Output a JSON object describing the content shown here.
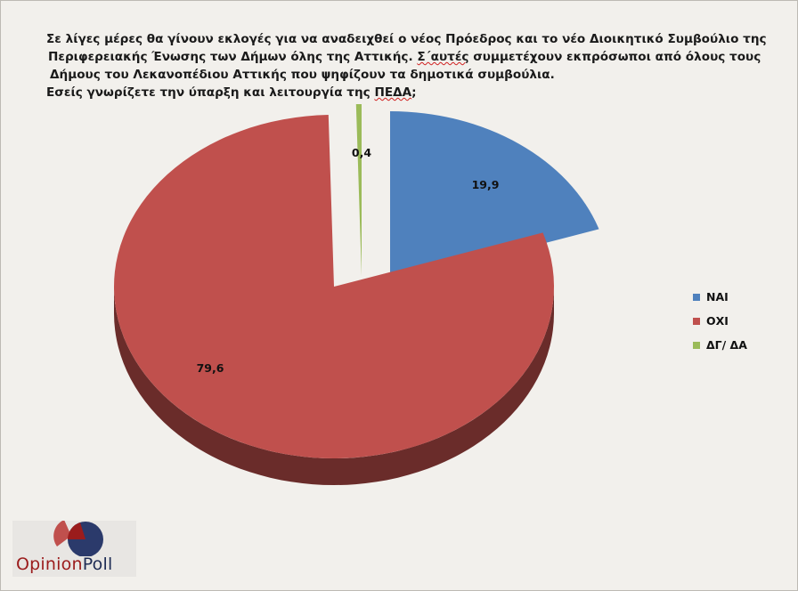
{
  "question": {
    "line1": "Σε λίγες μέρες θα γίνουν εκλογές για να αναδειχθεί ο νέος Πρόεδρος και το νέο Διοικητικό Συμβούλιο της",
    "line2": "Περιφερειακής Ένωσης των Δήμων όλης της Αττικής. ",
    "line2_wavy": "Σ΄αυτές",
    "line2_rest": " συμμετέχουν εκπρόσωποι από όλους τους",
    "line3": "Δήμους του Λεκανοπέδιου Αττικής που ψηφίζουν τα δημοτικά συμβούλια.",
    "line4": "Εσείς γνωρίζετε την ύπαρξη και λειτουργία της ",
    "line4_wavy": "ΠΕΔΑ",
    "line4_end": ";"
  },
  "chart_data": {
    "type": "pie",
    "style": "3d-exploded",
    "categories": [
      "ΝΑΙ",
      "ΟΧΙ",
      "ΔΓ/ ΔΑ"
    ],
    "values": [
      19.9,
      79.6,
      0.4
    ],
    "value_labels": [
      "19,9",
      "79,6",
      "0,4"
    ],
    "colors": [
      "#4f81bd",
      "#c0504d",
      "#9bbb59"
    ],
    "legend_position": "right"
  },
  "legend": {
    "items": [
      {
        "label": "ΝΑΙ",
        "color": "#4f81bd"
      },
      {
        "label": "ΟΧΙ",
        "color": "#c0504d"
      },
      {
        "label": "ΔΓ/ ΔΑ",
        "color": "#9bbb59"
      }
    ]
  },
  "logo": {
    "text_part1": "Opinion",
    "text_part2": "Poll"
  }
}
